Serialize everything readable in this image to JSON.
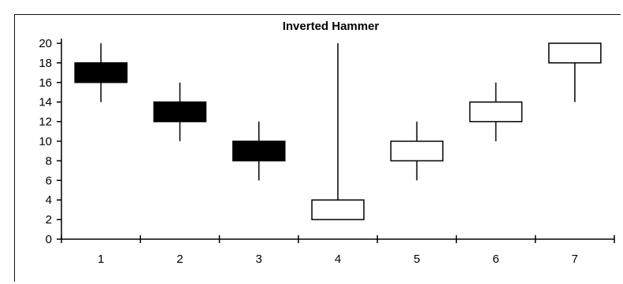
{
  "chart_data": {
    "type": "candlestick",
    "title": "Inverted Hammer",
    "xlabel": "",
    "ylabel": "",
    "categories": [
      "1",
      "2",
      "3",
      "4",
      "5",
      "6",
      "7"
    ],
    "ylim": [
      0,
      20
    ],
    "yticks": [
      0,
      2,
      4,
      6,
      8,
      10,
      12,
      14,
      16,
      18,
      20
    ],
    "grid": false,
    "legend": "none",
    "candles": [
      {
        "x": "1",
        "open": 18,
        "high": 20,
        "low": 14,
        "close": 16,
        "bearish": true
      },
      {
        "x": "2",
        "open": 14,
        "high": 16,
        "low": 10,
        "close": 12,
        "bearish": true
      },
      {
        "x": "3",
        "open": 10,
        "high": 12,
        "low": 6,
        "close": 8,
        "bearish": true
      },
      {
        "x": "4",
        "open": 2,
        "high": 20,
        "low": 2,
        "close": 4,
        "bearish": false
      },
      {
        "x": "5",
        "open": 8,
        "high": 12,
        "low": 6,
        "close": 10,
        "bearish": false
      },
      {
        "x": "6",
        "open": 12,
        "high": 16,
        "low": 10,
        "close": 14,
        "bearish": false
      },
      {
        "x": "7",
        "open": 18,
        "high": 20,
        "low": 14,
        "close": 20,
        "bearish": false
      }
    ],
    "colors": {
      "bearish": "#000000",
      "bullish": "#ffffff",
      "outline": "#000000"
    }
  }
}
